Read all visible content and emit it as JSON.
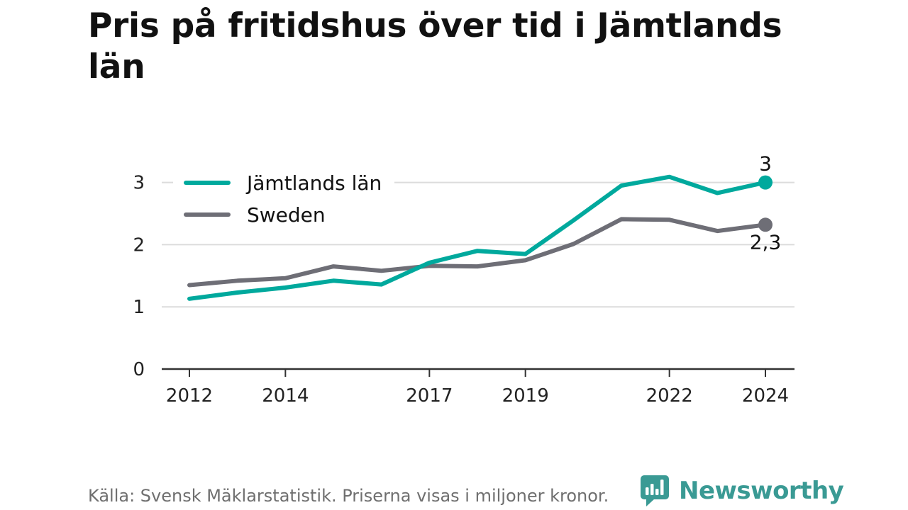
{
  "title": "Pris på fritidshus över tid i Jämtlands län",
  "source": "Källa: Svensk Mäklarstatistik. Priserna visas i miljoner kronor.",
  "brand": {
    "name": "Newsworthy",
    "color": "#3a9a94"
  },
  "chart_data": {
    "type": "line",
    "title": "Pris på fritidshus över tid i Jämtlands län",
    "xlabel": "",
    "ylabel": "",
    "x": [
      2012,
      2013,
      2014,
      2015,
      2016,
      2017,
      2018,
      2019,
      2020,
      2021,
      2022,
      2023,
      2024
    ],
    "x_ticks": [
      "2012",
      "2014",
      "2017",
      "2019",
      "2022",
      "2024"
    ],
    "y_ticks": [
      "0",
      "1",
      "2",
      "3"
    ],
    "ylim": [
      0,
      3.3
    ],
    "xlim": [
      2012,
      2024
    ],
    "grid": true,
    "legend_position": "top-left",
    "series": [
      {
        "name": "Jämtlands län",
        "color": "#00a99d",
        "values": [
          1.13,
          1.23,
          1.31,
          1.42,
          1.36,
          1.71,
          1.9,
          1.85,
          2.39,
          2.95,
          3.09,
          2.83,
          3.0
        ],
        "end_label": "3"
      },
      {
        "name": "Sweden",
        "color": "#6e6e76",
        "values": [
          1.35,
          1.42,
          1.46,
          1.65,
          1.58,
          1.66,
          1.65,
          1.75,
          2.01,
          2.41,
          2.4,
          2.22,
          2.32
        ],
        "end_label": "2,3"
      }
    ]
  }
}
